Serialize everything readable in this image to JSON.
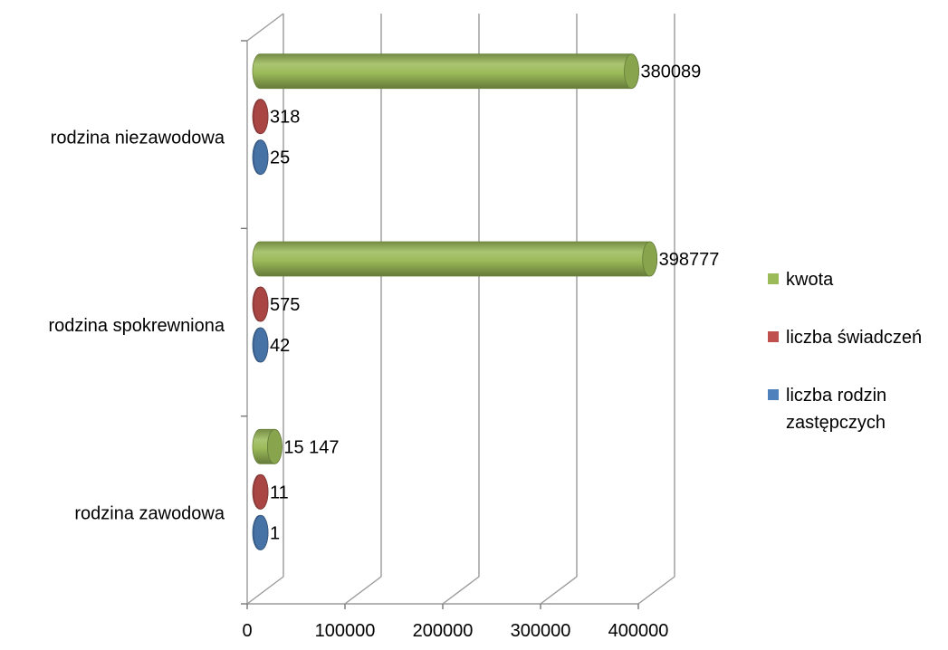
{
  "chart_data": {
    "type": "bar",
    "orientation": "horizontal",
    "style": "3d-cylinder",
    "categories": [
      "rodzina niezawodowa",
      "rodzina spokrewniona",
      "rodzina zawodowa"
    ],
    "series": [
      {
        "name": "kwota",
        "color": "#9BBB59",
        "values": [
          380089,
          398777,
          15147
        ],
        "labels": [
          "380089",
          "398777",
          "15 147"
        ]
      },
      {
        "name": "liczba świadczeń",
        "color": "#C0504D",
        "values": [
          318,
          575,
          11
        ],
        "labels": [
          "318",
          "575",
          "11"
        ]
      },
      {
        "name": "liczba rodzin zastępczych",
        "color": "#4F81BD",
        "values": [
          25,
          42,
          1
        ],
        "labels": [
          "25",
          "42",
          "1"
        ]
      }
    ],
    "x_ticks": [
      "0",
      "100000",
      "200000",
      "300000",
      "400000"
    ],
    "xlim": [
      0,
      400000
    ],
    "grid": true,
    "legend_position": "right",
    "legend_entries": [
      {
        "color": "#9BBB59",
        "lines": [
          "kwota"
        ]
      },
      {
        "color": "#C0504D",
        "lines": [
          "liczba świadczeń"
        ]
      },
      {
        "color": "#4F81BD",
        "lines": [
          "liczba rodzin",
          "zastępczych"
        ]
      }
    ]
  }
}
